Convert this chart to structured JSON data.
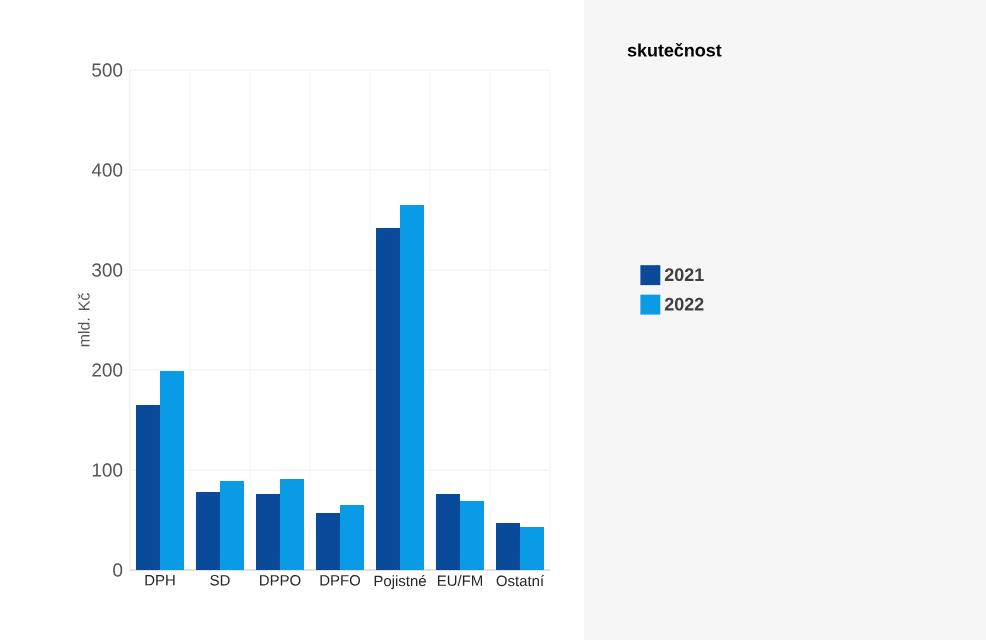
{
  "chart_data": {
    "type": "bar",
    "ylabel": "mld. Kč",
    "legend_title": "skutečnost",
    "categories": [
      "DPH",
      "SD",
      "DPPO",
      "DPFO",
      "Pojistné",
      "EU/FM",
      "Ostatní"
    ],
    "series": [
      {
        "name": "2021",
        "color": "#0a4a9a",
        "values": [
          165,
          78,
          76,
          57,
          342,
          76,
          47
        ]
      },
      {
        "name": "2022",
        "color": "#0a9be6",
        "values": [
          199,
          89,
          91,
          65,
          365,
          69,
          43
        ]
      }
    ],
    "ylim": [
      0,
      500
    ],
    "yticks": [
      0,
      100,
      200,
      300,
      400,
      500
    ],
    "grid": true,
    "legend": "right"
  }
}
